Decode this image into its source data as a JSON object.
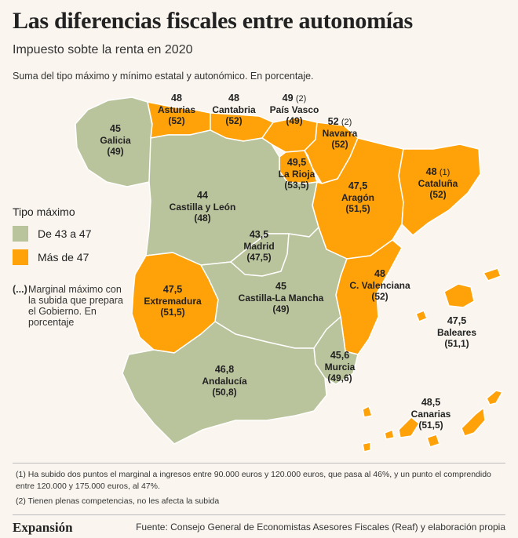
{
  "title": "Las diferencias fiscales entre autonomías",
  "subtitle": "Impuesto sobte la renta en 2020",
  "note": "Suma del tipo máximo y mínimo estatal y autonómico. En porcentaje.",
  "colors": {
    "low": "#b9c39c",
    "high": "#ffa109",
    "border": "#ffffff"
  },
  "legend": {
    "title": "Tipo máximo",
    "items": [
      {
        "label": "De 43 a 47",
        "color": "#b9c39c"
      },
      {
        "label": "Más de 47",
        "color": "#ffa109"
      }
    ]
  },
  "marginal_key": "(...)",
  "marginal_text": "Marginal máximo con la subida que prepara el Gobierno. En porcentaje",
  "regions": [
    {
      "id": "galicia",
      "name": "Galicia",
      "value": "45",
      "marginal": "(49)",
      "footnote": "",
      "category": "low"
    },
    {
      "id": "asturias",
      "name": "Asturias",
      "value": "48",
      "marginal": "(52)",
      "footnote": "",
      "category": "high"
    },
    {
      "id": "cantabria",
      "name": "Cantabria",
      "value": "48",
      "marginal": "(52)",
      "footnote": "",
      "category": "high"
    },
    {
      "id": "pais-vasco",
      "name": "País Vasco",
      "value": "49",
      "marginal": "(49)",
      "footnote": "(2)",
      "category": "high"
    },
    {
      "id": "navarra",
      "name": "Navarra",
      "value": "52",
      "marginal": "(52)",
      "footnote": "(2)",
      "category": "high"
    },
    {
      "id": "la-rioja",
      "name": "La Rioja",
      "value": "49,5",
      "marginal": "(53,5)",
      "footnote": "",
      "category": "high"
    },
    {
      "id": "aragon",
      "name": "Aragón",
      "value": "47,5",
      "marginal": "(51,5)",
      "footnote": "",
      "category": "high"
    },
    {
      "id": "cataluna",
      "name": "Cataluña",
      "value": "48",
      "marginal": "(52)",
      "footnote": "(1)",
      "category": "high"
    },
    {
      "id": "castilla-leon",
      "name": "Castilla y León",
      "value": "44",
      "marginal": "(48)",
      "footnote": "",
      "category": "low"
    },
    {
      "id": "madrid",
      "name": "Madrid",
      "value": "43,5",
      "marginal": "(47,5)",
      "footnote": "",
      "category": "low"
    },
    {
      "id": "extremadura",
      "name": "Extremadura",
      "value": "47,5",
      "marginal": "(51,5)",
      "footnote": "",
      "category": "high"
    },
    {
      "id": "castilla-la-mancha",
      "name": "Castilla-La Mancha",
      "value": "45",
      "marginal": "(49)",
      "footnote": "",
      "category": "low"
    },
    {
      "id": "c-valenciana",
      "name": "C. Valenciana",
      "value": "48",
      "marginal": "(52)",
      "footnote": "",
      "category": "high"
    },
    {
      "id": "baleares",
      "name": "Baleares",
      "value": "47,5",
      "marginal": "(51,1)",
      "footnote": "",
      "category": "high"
    },
    {
      "id": "murcia",
      "name": "Murcia",
      "value": "45,6",
      "marginal": "(49,6)",
      "footnote": "",
      "category": "low"
    },
    {
      "id": "andalucia",
      "name": "Andalucía",
      "value": "46,8",
      "marginal": "(50,8)",
      "footnote": "",
      "category": "low"
    },
    {
      "id": "canarias",
      "name": "Canarias",
      "value": "48,5",
      "marginal": "(51,5)",
      "footnote": "",
      "category": "high"
    }
  ],
  "footnotes": [
    "(1) Ha subido dos puntos el marginal a ingresos entre 90.000 euros y 120.000 euros, que pasa al 46%, y un punto el comprendido entre 120.000 y 175.000 euros, al 47%.",
    "(2) Tienen plenas competencias, no les afecta la subida"
  ],
  "brand": "Expansión",
  "source": "Fuente: Consejo General de Economistas Asesores Fiscales (Reaf) y elaboración propia"
}
